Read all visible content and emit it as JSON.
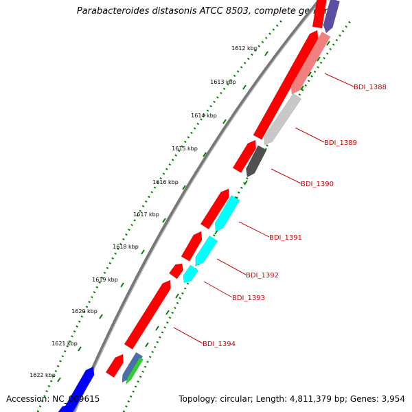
{
  "title": "Parabacteroides distasonis ATCC 8503, complete genome",
  "footer": {
    "accession": "Accession: NC_009615",
    "summary": "Topology: circular; Length: 4,811,379 bp; Genes: 3,954"
  },
  "ticks": [
    "1612 kbp",
    "1613 kbp",
    "1614 kbp",
    "1615 kbp",
    "1616 kbp",
    "1617 kbp",
    "1618 kbp",
    "1619 kbp",
    "1620 kbp",
    "1621 kbp",
    "1622 kbp"
  ],
  "gene_labels": [
    "BDI_1388",
    "BDI_1389",
    "BDI_1390",
    "BDI_1391",
    "BDI_1392",
    "BDI_1393",
    "BDI_1394"
  ],
  "colors": {
    "cds": "#ff0000",
    "cds_dark": "#b00000",
    "backbone": "#888888",
    "dotted_ring": "#008000",
    "label_line": "#d00000",
    "pink": "#f28080",
    "light_gray": "#c8c8c8",
    "dark_gray": "#505050",
    "cyan": "#00ffff",
    "blue": "#0000ff",
    "purple": "#5a4fa0",
    "green": "#33cc33",
    "steel": "#4a6fa8"
  }
}
